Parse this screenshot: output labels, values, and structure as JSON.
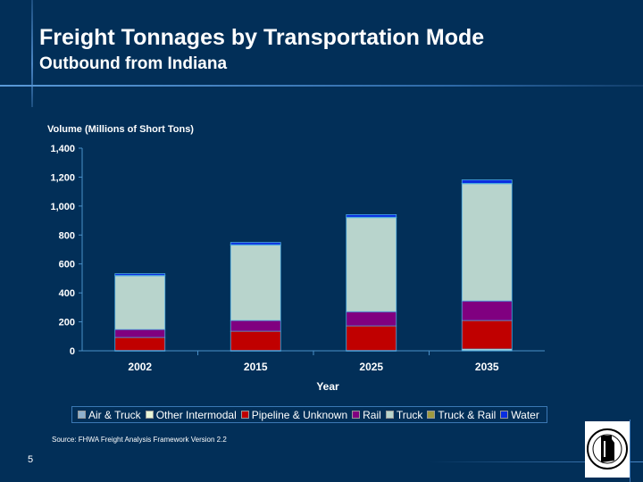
{
  "slide": {
    "title": "Freight Tonnages by Transportation Mode",
    "subtitle": "Outbound from Indiana",
    "source": "Source:  FHWA Freight Analysis Framework Version 2.2",
    "page_number": "5",
    "logo_text": "Indiana Department of Transportation"
  },
  "chart_data": {
    "type": "stacked-bar",
    "ylabel": "Volume (Millions of Short Tons)",
    "xlabel": "Year",
    "categories": [
      "2002",
      "2015",
      "2025",
      "2035"
    ],
    "ylim": [
      0,
      1400
    ],
    "yticks": [
      "0",
      "200",
      "400",
      "600",
      "800",
      "1,000",
      "1,200",
      "1,400"
    ],
    "ytick_values": [
      0,
      200,
      400,
      600,
      800,
      1000,
      1200,
      1400
    ],
    "legend_position": "bottom",
    "series": [
      {
        "name": "Air & Truck",
        "color": "#8fb0cc",
        "values": [
          1,
          1,
          1,
          2
        ]
      },
      {
        "name": "Other Intermodal",
        "color": "#e8f6d8",
        "values": [
          1,
          1,
          1,
          10
        ]
      },
      {
        "name": "Pipeline & Unknown",
        "color": "#c00000",
        "values": [
          90,
          133,
          170,
          197
        ]
      },
      {
        "name": "Rail",
        "color": "#800080",
        "values": [
          55,
          74,
          98,
          135
        ]
      },
      {
        "name": "Truck",
        "color": "#b8d4cc",
        "values": [
          373,
          523,
          652,
          812
        ]
      },
      {
        "name": "Truck & Rail",
        "color": "#a09a40",
        "values": [
          1,
          1,
          1,
          1
        ]
      },
      {
        "name": "Water",
        "color": "#0a2ee0",
        "values": [
          12,
          16,
          18,
          24
        ]
      }
    ]
  }
}
